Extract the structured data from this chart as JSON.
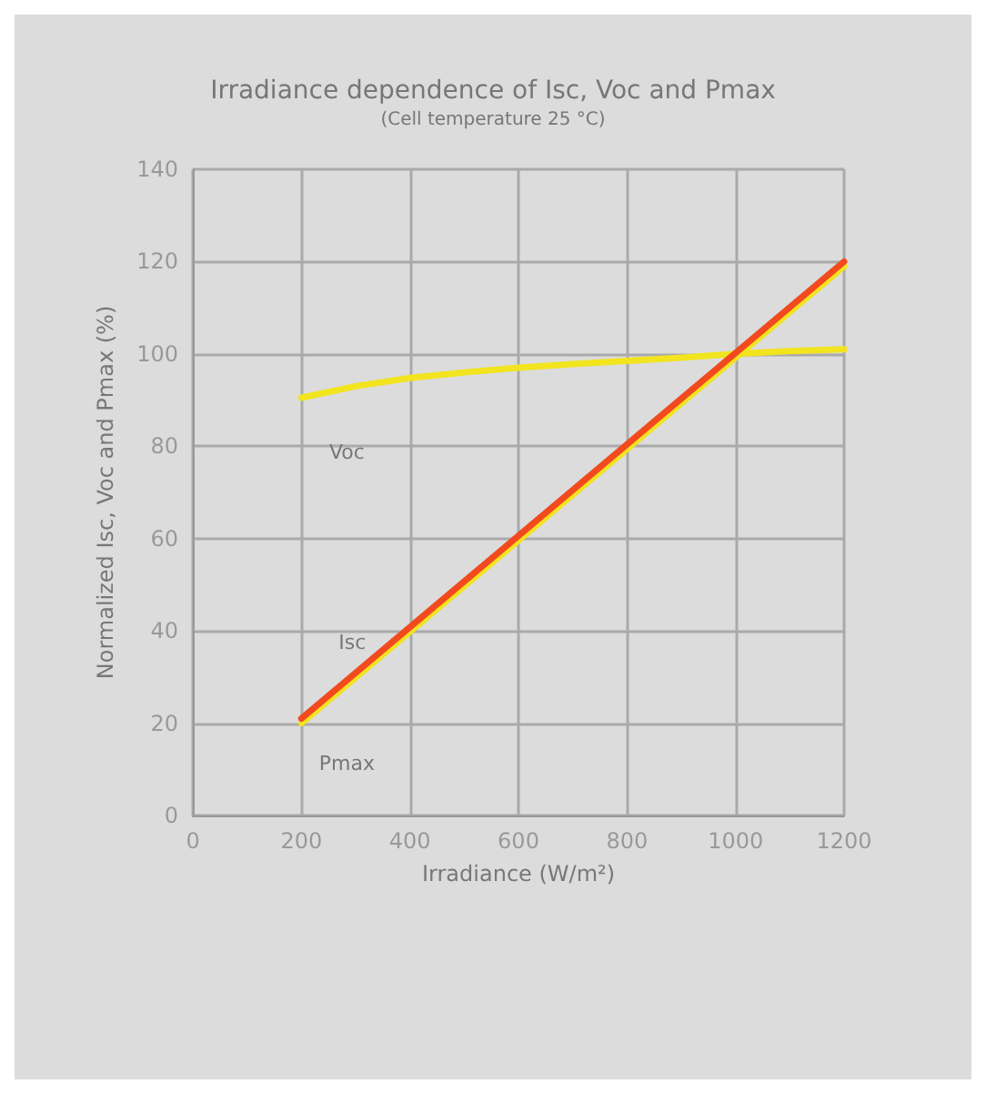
{
  "chart_data": {
    "type": "line",
    "title": "Irradiance dependence of Isc, Voc and Pmax",
    "subtitle": "(Cell temperature 25 °C)",
    "xlabel": "Irradiance (W/m²)",
    "ylabel": "Normalized Isc, Voc and Pmax (%)",
    "xlim": [
      0,
      1200
    ],
    "xticks": [
      0,
      200,
      400,
      600,
      800,
      1000,
      1200
    ],
    "ylim": [
      0,
      140
    ],
    "yticks": [
      0,
      20,
      40,
      60,
      80,
      100,
      120,
      140
    ],
    "grid": true,
    "legend": false,
    "marker": "none",
    "line_style": "solid",
    "series": [
      {
        "name": "Voc",
        "color": "#f2e41e",
        "x": [
          200,
          300,
          400,
          500,
          600,
          700,
          800,
          900,
          1000,
          1100,
          1200
        ],
        "values": [
          90.5,
          93,
          94.8,
          96,
          97,
          97.8,
          98.5,
          99.2,
          100,
          100.6,
          101
        ]
      },
      {
        "name": "Pmax",
        "color": "#f2e41e",
        "x": [
          200,
          1200
        ],
        "values": [
          20,
          119
        ]
      },
      {
        "name": "Isc",
        "color": "#f24a1e",
        "x": [
          200,
          1200
        ],
        "values": [
          21,
          120
        ]
      }
    ]
  }
}
